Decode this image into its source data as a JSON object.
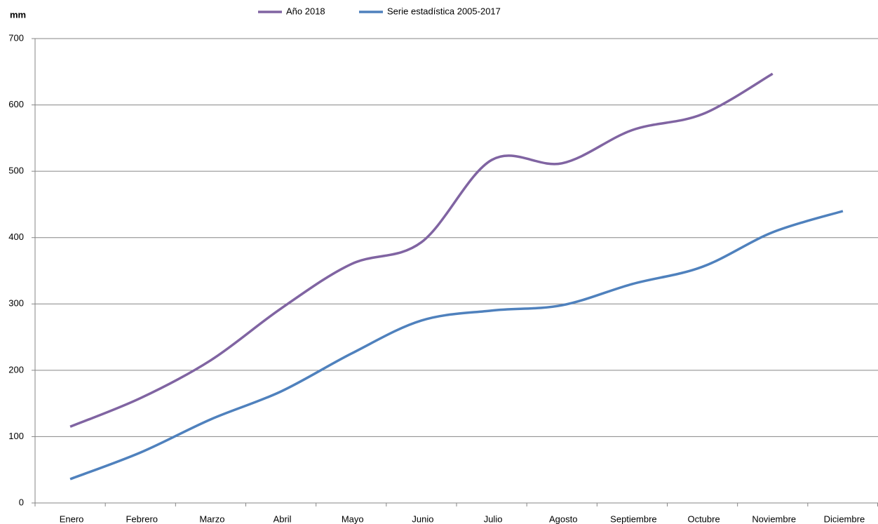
{
  "chart_data": {
    "type": "line",
    "y_label": "mm",
    "categories": [
      "Enero",
      "Febrero",
      "Marzo",
      "Abril",
      "Mayo",
      "Junio",
      "Julio",
      "Agosto",
      "Septiembre",
      "Octubre",
      "Noviembre",
      "Diciembre"
    ],
    "series": [
      {
        "name": "Año 2018",
        "color": "#8064a2",
        "values": [
          115,
          158,
          215,
          293,
          360,
          393,
          517,
          512,
          562,
          586,
          647,
          null
        ]
      },
      {
        "name": "Serie estadística 2005-2017",
        "color": "#4f81bd",
        "values": [
          36,
          76,
          126,
          168,
          225,
          275,
          290,
          298,
          330,
          356,
          408,
          440
        ]
      }
    ],
    "ylim": [
      0,
      700
    ],
    "yticks": [
      0,
      100,
      200,
      300,
      400,
      500,
      600,
      700
    ],
    "grid": true,
    "legend": "top"
  }
}
